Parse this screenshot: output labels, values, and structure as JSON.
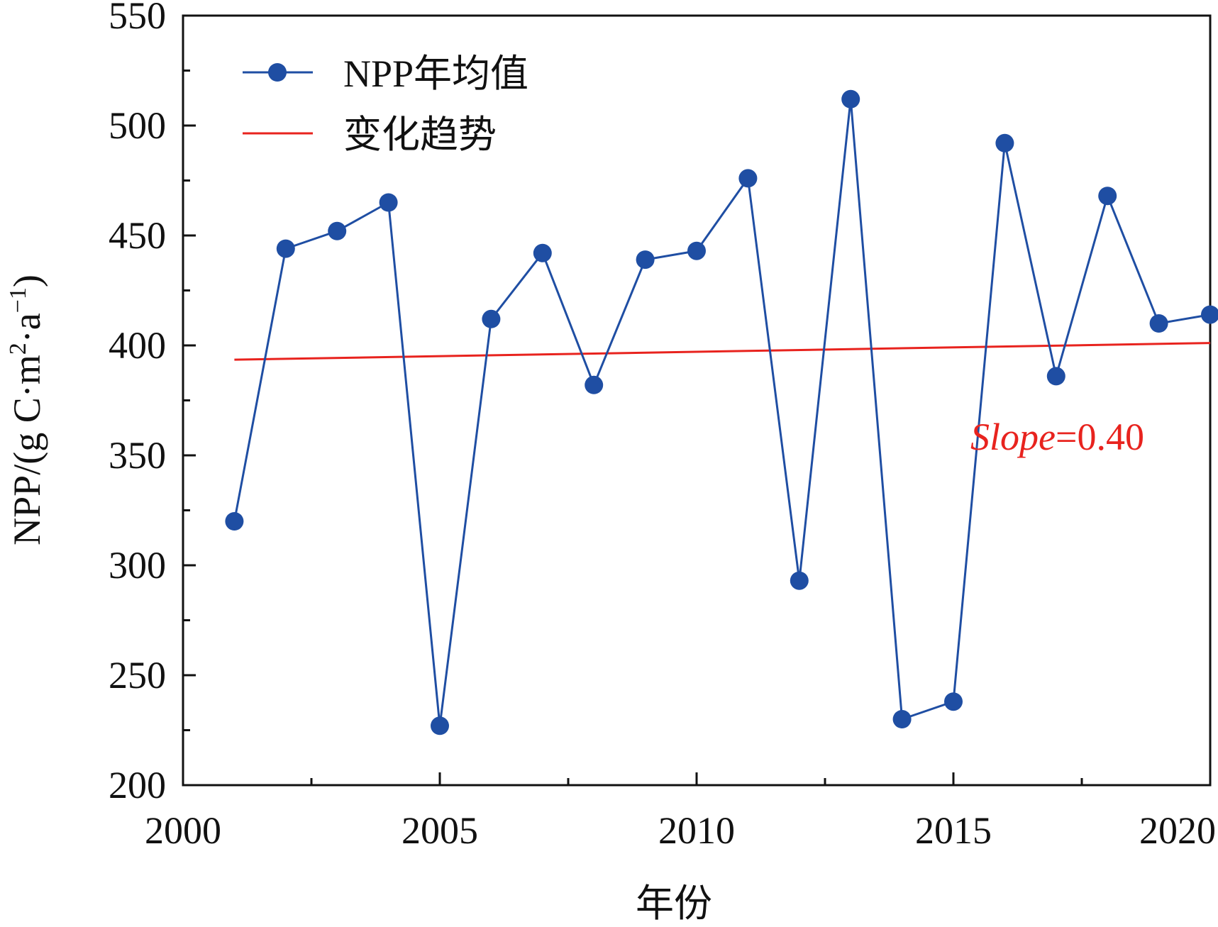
{
  "chart_data": {
    "type": "line",
    "title": "",
    "xlabel": "年份",
    "ylabel": "NPP/(g C·m",
    "ylabel_sup1": "2",
    "ylabel_mid": "·a",
    "ylabel_sup2": "−1",
    "ylabel_end": ")",
    "xlim": [
      2000,
      2020
    ],
    "ylim": [
      200,
      550
    ],
    "xticks": [
      2000,
      2005,
      2010,
      2015,
      2020
    ],
    "yticks": [
      200,
      250,
      300,
      350,
      400,
      450,
      500,
      550
    ],
    "grid": false,
    "legend_position": "top-left",
    "series": [
      {
        "name": "NPP年均值",
        "color": "#1f4ea3",
        "marker": "circle",
        "x": [
          2001,
          2002,
          2003,
          2004,
          2005,
          2006,
          2007,
          2008,
          2009,
          2010,
          2011,
          2012,
          2013,
          2014,
          2015,
          2016,
          2017,
          2018,
          2019,
          2020
        ],
        "y": [
          320,
          444,
          452,
          465,
          227,
          412,
          442,
          382,
          439,
          443,
          476,
          293,
          512,
          230,
          238,
          492,
          386,
          468,
          410,
          414
        ]
      },
      {
        "name": "变化趋势",
        "color": "#e8231e",
        "marker": "none",
        "x": [
          2001,
          2020
        ],
        "y": [
          393.5,
          401.1
        ]
      }
    ],
    "annotation": {
      "label_italic": "Slope",
      "label_rest": "=0.40",
      "color": "#e8231e"
    }
  }
}
